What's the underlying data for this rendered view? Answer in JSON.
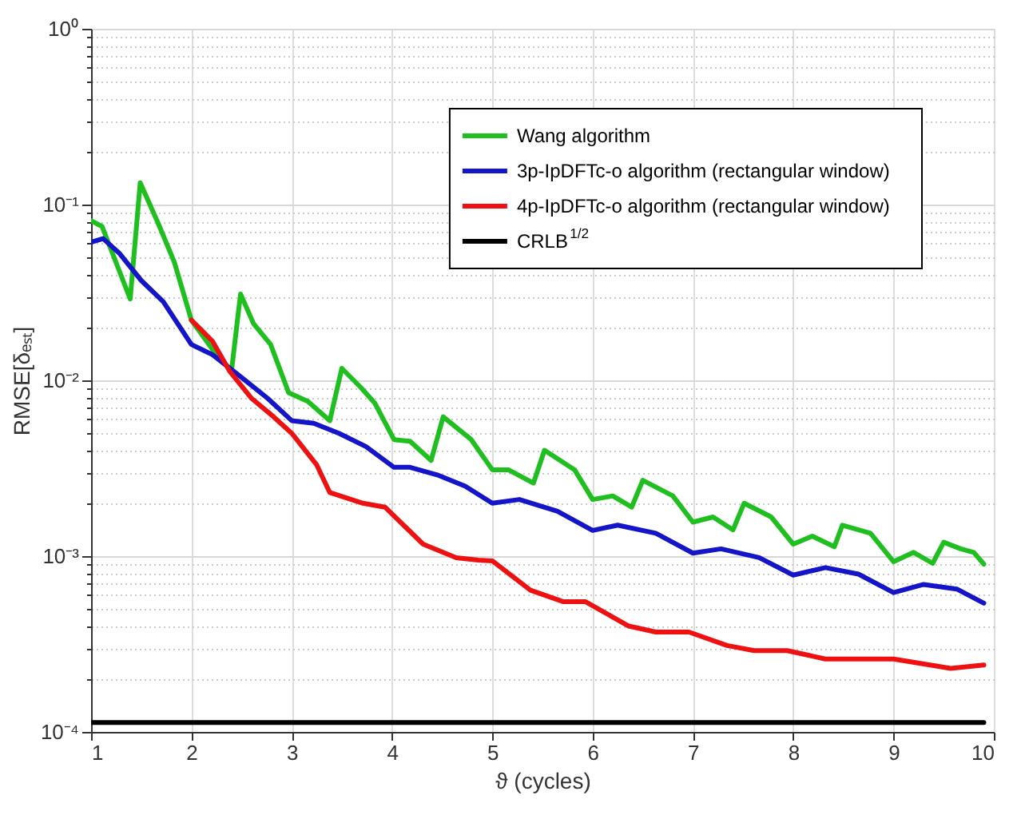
{
  "chart_data": {
    "type": "line",
    "xlabel": "ϑ (cycles)",
    "ylabel": "RMSE[δₑₛₜ]",
    "log": "y",
    "grid": true,
    "legend": "top right",
    "xlim": [
      1,
      10
    ],
    "xticks": [
      1,
      2,
      3,
      4,
      5,
      6,
      7,
      8,
      9,
      10
    ],
    "ylim": [
      0.0001,
      1
    ],
    "yticks": [
      {
        "value": 0.0001,
        "label": "10⁻⁴"
      },
      {
        "value": 0.0002,
        "label": null
      },
      {
        "value": 0.0003,
        "label": null
      },
      {
        "value": 0.0004,
        "label": null
      },
      {
        "value": 0.0005,
        "label": null
      },
      {
        "value": 0.0006,
        "label": null
      },
      {
        "value": 0.0007,
        "label": null
      },
      {
        "value": 0.0008,
        "label": null
      },
      {
        "value": 0.0009,
        "label": null
      },
      {
        "value": 0.001,
        "label": "10⁻³"
      },
      {
        "value": 0.002,
        "label": null
      },
      {
        "value": 0.003,
        "label": null
      },
      {
        "value": 0.004,
        "label": null
      },
      {
        "value": 0.005,
        "label": null
      },
      {
        "value": 0.006,
        "label": null
      },
      {
        "value": 0.007,
        "label": null
      },
      {
        "value": 0.008,
        "label": null
      },
      {
        "value": 0.009,
        "label": null
      },
      {
        "value": 0.01,
        "label": "10⁻²"
      },
      {
        "value": 0.02,
        "label": null
      },
      {
        "value": 0.03,
        "label": null
      },
      {
        "value": 0.04,
        "label": null
      },
      {
        "value": 0.05,
        "label": null
      },
      {
        "value": 0.06,
        "label": null
      },
      {
        "value": 0.07,
        "label": null
      },
      {
        "value": 0.08,
        "label": null
      },
      {
        "value": 0.09,
        "label": null
      },
      {
        "value": 0.1,
        "label": "10⁻¹"
      },
      {
        "value": 0.2,
        "label": null
      },
      {
        "value": 0.3,
        "label": null
      },
      {
        "value": 0.4,
        "label": null
      },
      {
        "value": 0.5,
        "label": null
      },
      {
        "value": 0.6,
        "label": null
      },
      {
        "value": 0.7,
        "label": null
      },
      {
        "value": 0.8,
        "label": null
      },
      {
        "value": 0.9,
        "label": null
      },
      {
        "value": 1,
        "label": "10⁰"
      }
    ],
    "series": [
      {
        "name": "Wang algorithm",
        "color": "#1fbf1f",
        "type": "line",
        "x": [
          1,
          1.11,
          1.39,
          1.49,
          1.67,
          1.83,
          2,
          2.21,
          2.4,
          2.49,
          2.62,
          2.79,
          2.97,
          3.16,
          3.38,
          3.5,
          3.69,
          3.83,
          4.02,
          4.18,
          4.39,
          4.51,
          4.79,
          5,
          5.16,
          5.41,
          5.52,
          5.82,
          6,
          6.2,
          6.39,
          6.5,
          6.8,
          7,
          7.2,
          7.4,
          7.51,
          7.78,
          8,
          8.19,
          8.41,
          8.49,
          8.77,
          9,
          9.2,
          9.39,
          9.5,
          9.67,
          9.8,
          9.9
        ],
        "values": [
          0.081,
          0.075,
          0.029,
          0.133,
          0.078,
          0.047,
          0.022,
          0.015,
          0.0113,
          0.031,
          0.021,
          0.016,
          0.0085,
          0.0076,
          0.0059,
          0.0117,
          0.0091,
          0.0074,
          0.0046,
          0.0045,
          0.0035,
          0.0062,
          0.0046,
          0.0031,
          0.0031,
          0.0026,
          0.004,
          0.0031,
          0.0021,
          0.0022,
          0.0019,
          0.0027,
          0.0022,
          0.00156,
          0.00167,
          0.00141,
          0.002,
          0.00167,
          0.00117,
          0.0013,
          0.00113,
          0.0015,
          0.00135,
          0.00093,
          0.00105,
          0.00091,
          0.0012,
          0.0011,
          0.00105,
          0.0009
        ]
      },
      {
        "name": "3p-IpDFTc-o algorithm (rectangular window)",
        "color": "#1414c8",
        "type": "line",
        "x": [
          1,
          1.12,
          1.28,
          1.5,
          1.72,
          2,
          2.21,
          2.49,
          2.76,
          3,
          3.22,
          3.47,
          3.74,
          4.02,
          4.18,
          4.45,
          4.73,
          5,
          5.27,
          5.65,
          6,
          6.25,
          6.63,
          7,
          7.28,
          7.66,
          8,
          8.32,
          8.65,
          9,
          9.3,
          9.63,
          9.9
        ],
        "values": [
          0.061,
          0.064,
          0.053,
          0.037,
          0.028,
          0.016,
          0.014,
          0.0105,
          0.0079,
          0.0059,
          0.0057,
          0.005,
          0.0042,
          0.0032,
          0.0032,
          0.0029,
          0.0025,
          0.002,
          0.0021,
          0.0018,
          0.0014,
          0.0015,
          0.00135,
          0.00104,
          0.0011,
          0.00098,
          0.00078,
          0.00086,
          0.00079,
          0.00062,
          0.00069,
          0.00065,
          0.00054
        ]
      },
      {
        "name": "4p-IpDFTc-o algorithm (rectangular window)",
        "color": "#ee1111",
        "type": "line",
        "x": [
          2,
          2.21,
          2.38,
          2.6,
          2.82,
          3,
          3.25,
          3.38,
          3.71,
          3.93,
          4.31,
          4.64,
          4.86,
          5,
          5.38,
          5.71,
          5.93,
          6.36,
          6.63,
          6.96,
          7.34,
          7.61,
          7.94,
          8.32,
          8.7,
          9,
          9.57,
          9.9
        ],
        "values": [
          0.022,
          0.0167,
          0.0113,
          0.0079,
          0.0062,
          0.005,
          0.0033,
          0.0023,
          0.002,
          0.0019,
          0.00117,
          0.00098,
          0.00095,
          0.00094,
          0.00064,
          0.00055,
          0.00055,
          0.0004,
          0.00037,
          0.00037,
          0.00031,
          0.00029,
          0.00029,
          0.00026,
          0.00026,
          0.00026,
          0.00023,
          0.00024
        ]
      },
      {
        "name": "CRLB$^{1/2}$",
        "color": "#000000",
        "type": "line",
        "x": [
          1,
          9.9
        ],
        "values": [
          0.000113,
          0.000113
        ]
      }
    ]
  }
}
